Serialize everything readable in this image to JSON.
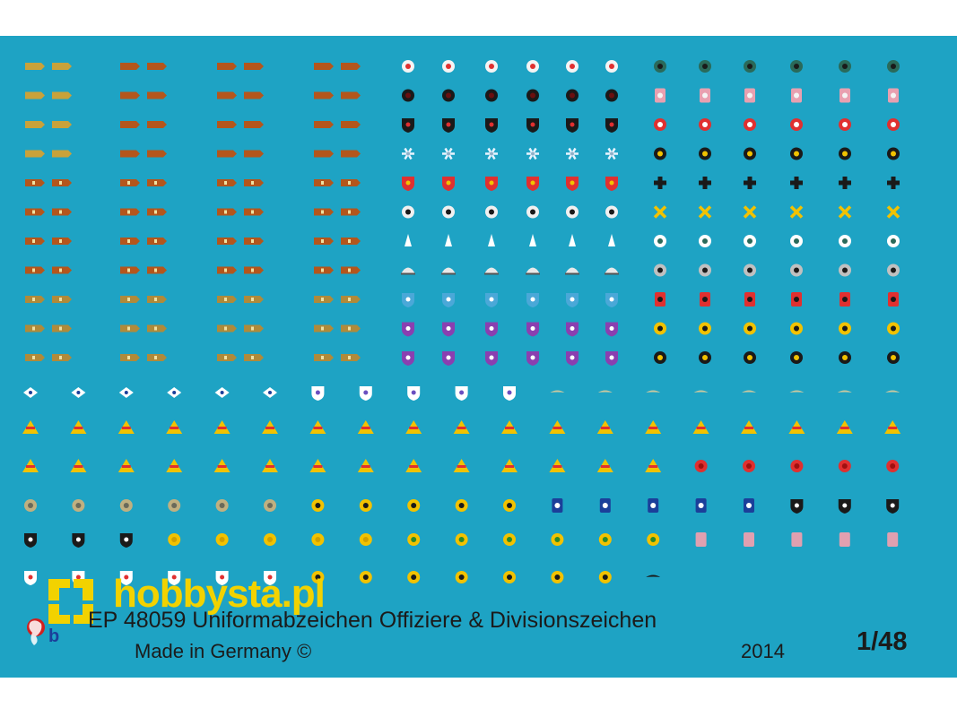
{
  "sheet": {
    "title": "EP 48059 Uniformabzeichen Offiziere & Divisionszeichen",
    "made_in": "Made in Germany ©",
    "year": "2014",
    "scale": "1/48"
  },
  "watermark": {
    "text": "hobbysta.pl"
  },
  "colors": {
    "sheet_background": "#1ea3c4",
    "tan": "#c9a23a",
    "brown": "#b4561c",
    "olive": "#b08a3a",
    "red": "#e03030",
    "black": "#1a1a1a",
    "yellow": "#f2c200",
    "purple": "#8a3fb0"
  },
  "groups": {
    "shoulder_straps_tan": {
      "rows": 11,
      "cols": 1,
      "icon": "shoulder-strap-icon"
    },
    "shoulder_straps_brown": {
      "rows": 11,
      "cols": 3,
      "icon": "shoulder-strap-icon"
    },
    "division_patches_center": {
      "rows": 11,
      "cols": 6,
      "icon": "division-patch-icon"
    },
    "division_patches_right": {
      "rows": 11,
      "cols": 6,
      "icon": "division-patch-icon"
    },
    "lower_rows": {
      "rows": 6,
      "cols": 19,
      "icon": "division-patch-icon"
    }
  }
}
